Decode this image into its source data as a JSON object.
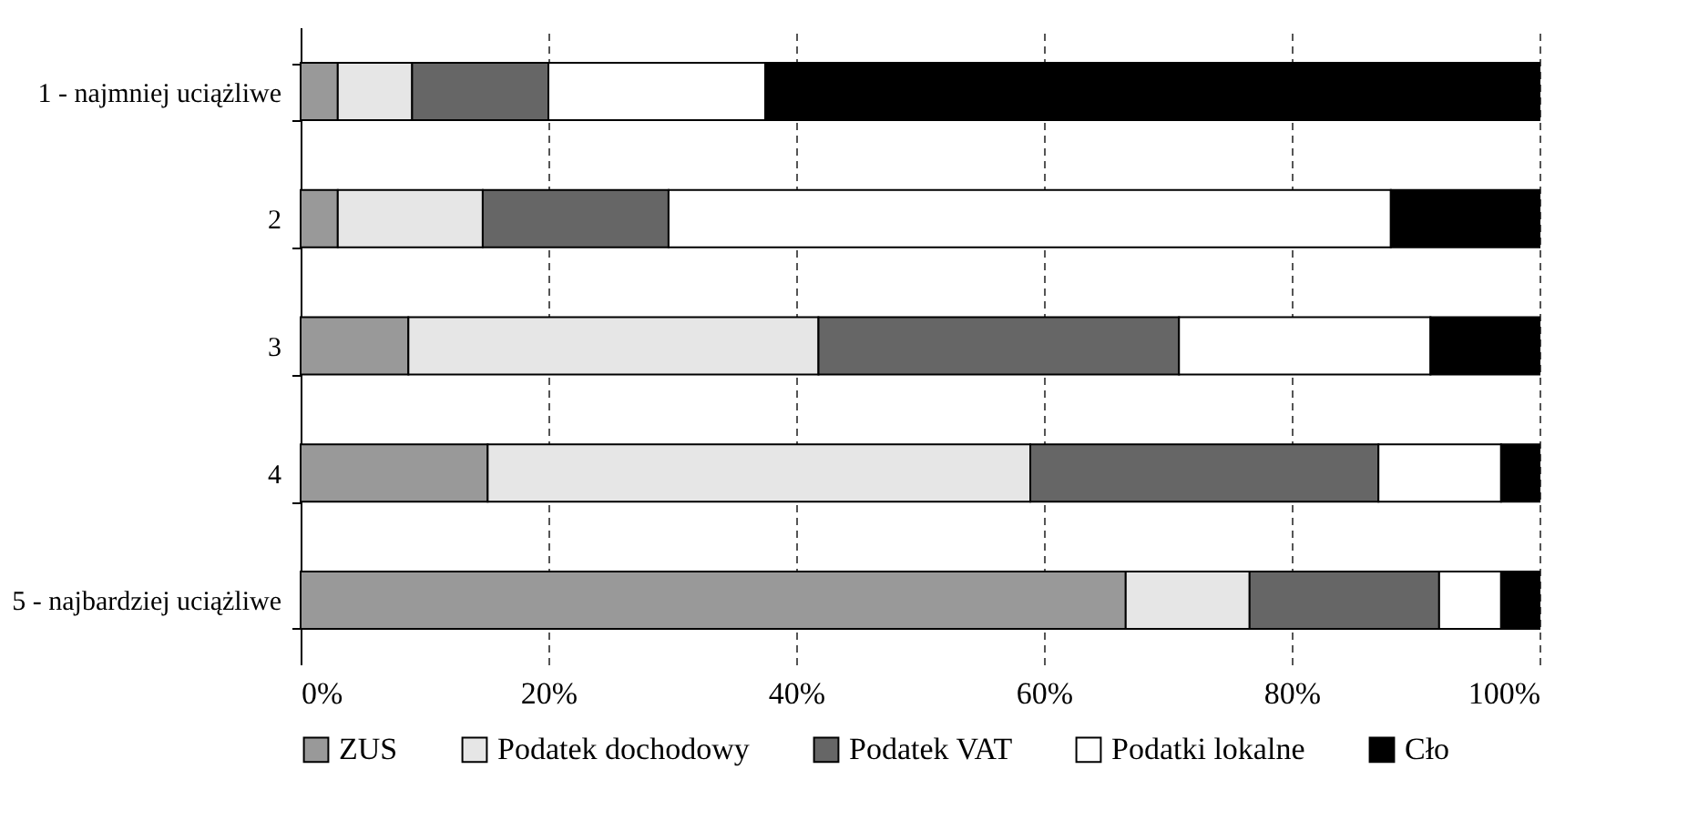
{
  "chart_data": {
    "type": "bar",
    "orientation": "horizontal",
    "stacked": true,
    "categories": [
      "1 - najmniej uciążliwe",
      "2",
      "3",
      "4",
      "5 - najbardziej uciążliwe"
    ],
    "series": [
      {
        "name": "ZUS",
        "color": "#999999",
        "values": [
          3,
          3,
          8.7,
          15.1,
          66.6
        ]
      },
      {
        "name": "Podatek dochodowy",
        "color": "#e6e6e6",
        "values": [
          6,
          11.7,
          33.1,
          43.8,
          10
        ]
      },
      {
        "name": "Podatek VAT",
        "color": "#666666",
        "values": [
          11,
          15,
          29.1,
          28.1,
          15.3
        ]
      },
      {
        "name": "Podatki lokalne",
        "color": "#ffffff",
        "values": [
          17.5,
          58.3,
          20.3,
          9.9,
          5
        ]
      },
      {
        "name": "Cło",
        "color": "#000000",
        "values": [
          62.5,
          12,
          8.8,
          3.1,
          3.1
        ]
      }
    ],
    "xlim": [
      0,
      100
    ],
    "xticks": [
      {
        "value": 0,
        "label": "0%"
      },
      {
        "value": 20,
        "label": "20%"
      },
      {
        "value": 40,
        "label": "40%"
      },
      {
        "value": 60,
        "label": "60%"
      },
      {
        "value": 80,
        "label": "80%"
      },
      {
        "value": 100,
        "label": "100%"
      }
    ],
    "grid": "x",
    "legend": "bottom"
  }
}
